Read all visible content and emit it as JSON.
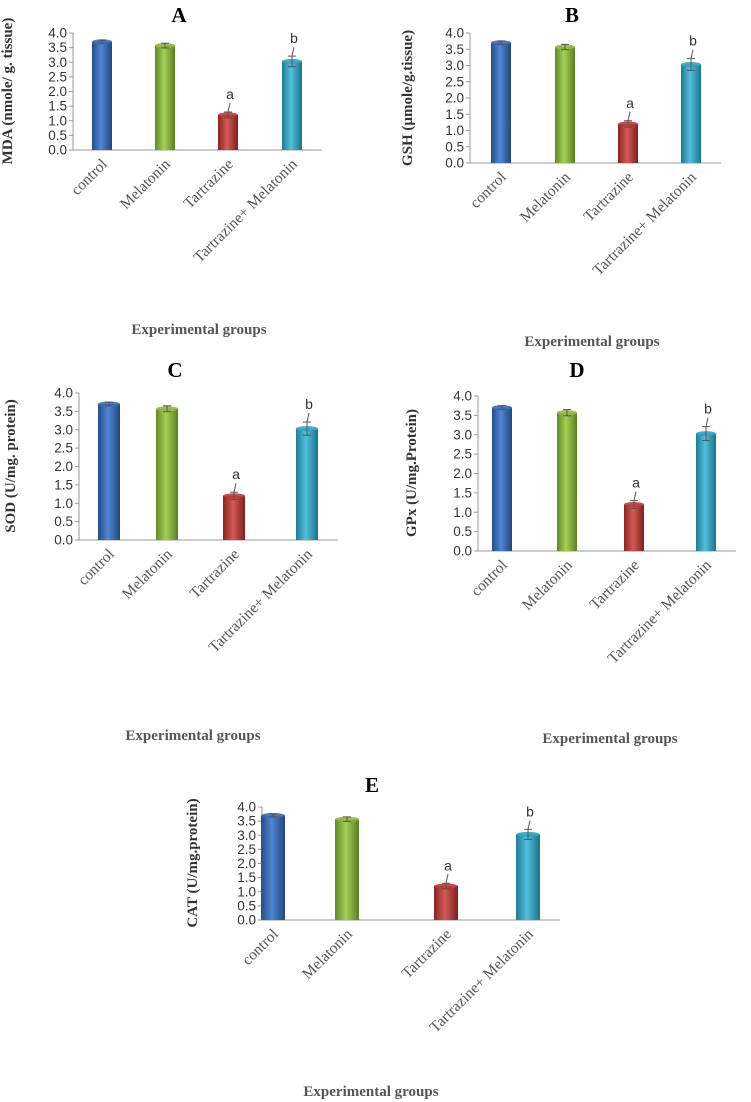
{
  "colors": {
    "control": "#3d6db5",
    "melatonin": "#8fb843",
    "tartrazine": "#b73c3a",
    "combo": "#33a3c1"
  },
  "chart_data": [
    {
      "type": "bar",
      "panel": "A",
      "ylabel": "MDA (nmole/ g. tissue)",
      "xlabel": "Experimental groups",
      "categories": [
        "control",
        "Melatonin",
        "Tartrazine",
        "Tartrazine+ Melatonin"
      ],
      "values": [
        3.7,
        3.57,
        1.2,
        3.03
      ],
      "errors": [
        0.05,
        0.08,
        0.1,
        0.18
      ],
      "significance": [
        "",
        "",
        "a",
        "b"
      ],
      "ylim": [
        0,
        4
      ],
      "yticks": [
        "0.0",
        "0.5",
        "1.0",
        "1.5",
        "2.0",
        "2.5",
        "3.0",
        "3.5",
        "4.0"
      ]
    },
    {
      "type": "bar",
      "panel": "B",
      "ylabel": "GSH (µmole/g.tissue)",
      "xlabel": "Experimental groups",
      "categories": [
        "control",
        "Melatonin",
        "Tartrazine",
        "Tartrazine+ Melatonin"
      ],
      "values": [
        3.7,
        3.57,
        1.2,
        3.03
      ],
      "errors": [
        0.05,
        0.08,
        0.1,
        0.18
      ],
      "significance": [
        "",
        "",
        "a",
        "b"
      ],
      "ylim": [
        0,
        4
      ],
      "yticks": [
        "0.0",
        "0.5",
        "1.0",
        "1.5",
        "2.0",
        "2.5",
        "3.0",
        "3.5",
        "4.0"
      ]
    },
    {
      "type": "bar",
      "panel": "C",
      "ylabel": "SOD (U/mg. protein)",
      "xlabel": "Experimental groups",
      "categories": [
        "control",
        "Melatonin",
        "Tartrazine",
        "Tartrazine+ Melatonin"
      ],
      "values": [
        3.7,
        3.57,
        1.2,
        3.03
      ],
      "errors": [
        0.05,
        0.08,
        0.1,
        0.18
      ],
      "significance": [
        "",
        "",
        "a",
        "b"
      ],
      "ylim": [
        0,
        4
      ],
      "yticks": [
        "0.0",
        "0.5",
        "1.0",
        "1.5",
        "2.0",
        "2.5",
        "3.0",
        "3.5",
        "4.0"
      ]
    },
    {
      "type": "bar",
      "panel": "D",
      "ylabel": "GPx (U/mg.Protein)",
      "xlabel": "Experimental groups",
      "categories": [
        "control",
        "Melatonin",
        "Tartrazine",
        "Tartrazine+ Melatonin"
      ],
      "values": [
        3.7,
        3.57,
        1.2,
        3.03
      ],
      "errors": [
        0.05,
        0.08,
        0.1,
        0.18
      ],
      "significance": [
        "",
        "",
        "a",
        "b"
      ],
      "ylim": [
        0,
        4
      ],
      "yticks": [
        "0.0",
        "0.5",
        "1.0",
        "1.5",
        "2.0",
        "2.5",
        "3.0",
        "3.5",
        "4.0"
      ]
    },
    {
      "type": "bar",
      "panel": "E",
      "ylabel": "CAT (U/mg.protein)",
      "xlabel": "Experimental groups",
      "categories": [
        "control",
        "Melatonin",
        "Tartrazine",
        "Tartrazine+ Melatonin"
      ],
      "values": [
        3.7,
        3.57,
        1.2,
        3.03
      ],
      "errors": [
        0.05,
        0.08,
        0.1,
        0.18
      ],
      "significance": [
        "",
        "",
        "a",
        "b"
      ],
      "ylim": [
        0,
        4
      ],
      "yticks": [
        "0.0",
        "0.5",
        "1.0",
        "1.5",
        "2.0",
        "2.5",
        "3.0",
        "3.5",
        "4.0"
      ]
    }
  ]
}
